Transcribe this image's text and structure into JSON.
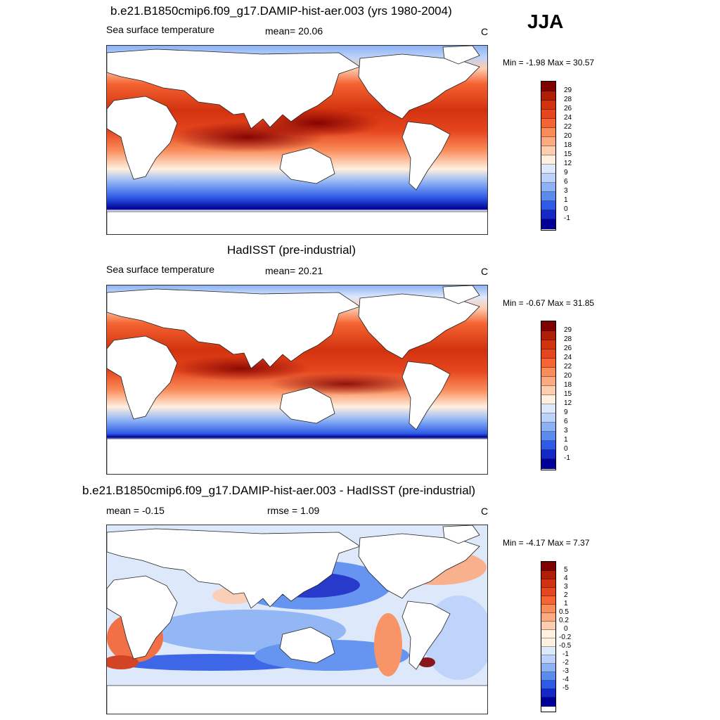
{
  "season": "JJA",
  "panels": [
    {
      "title": "b.e21.B1850cmip6.f09_g17.DAMIP-hist-aer.003 (yrs 1980-2004)",
      "left_label": "Sea surface temperature",
      "mid_label": "mean=  20.06",
      "unit": "C",
      "minmax": "Min =  -1.98 Max =  30.57",
      "levels": [
        "29",
        "28",
        "26",
        "24",
        "22",
        "20",
        "18",
        "15",
        "12",
        "9",
        "6",
        "3",
        "1",
        "0",
        "-1"
      ]
    },
    {
      "title": "HadISST (pre-industrial)",
      "left_label": "Sea surface temperature",
      "mid_label": "mean=  20.21",
      "unit": "C",
      "minmax": "Min =  -0.67 Max =  31.85",
      "levels": [
        "29",
        "28",
        "26",
        "24",
        "22",
        "20",
        "18",
        "15",
        "12",
        "9",
        "6",
        "3",
        "1",
        "0",
        "-1"
      ]
    },
    {
      "title": "b.e21.B1850cmip6.f09_g17.DAMIP-hist-aer.003 - HadISST (pre-industrial)",
      "left_label": "mean =  -0.15",
      "mid_label": "rmse =   1.09",
      "unit": "C",
      "minmax": "Min =  -4.17 Max =   7.37",
      "levels": [
        "5",
        "4",
        "3",
        "2",
        "1",
        "0.5",
        "0.2",
        "0",
        "-0.2",
        "-0.5",
        "-1",
        "-2",
        "-3",
        "-4",
        "-5"
      ]
    }
  ],
  "colors": {
    "sst": [
      "#800000",
      "#b01e05",
      "#d2320e",
      "#e6461e",
      "#f56432",
      "#fa8c5a",
      "#fcaa82",
      "#fdcdb0",
      "#fff0e0",
      "#dde9fb",
      "#bcd2fa",
      "#8cb2f5",
      "#5a8cf0",
      "#2d5ae6",
      "#1428c8",
      "#000096"
    ],
    "diff": [
      "#800000",
      "#b01e05",
      "#d2320e",
      "#e6461e",
      "#f56432",
      "#fa8c5a",
      "#fcaa82",
      "#fdcdb0",
      "#fff0e0",
      "#fff0e0",
      "#dde9fb",
      "#bcd2fa",
      "#8cb2f5",
      "#5a8cf0",
      "#2d5ae6",
      "#1428c8",
      "#000096"
    ]
  }
}
